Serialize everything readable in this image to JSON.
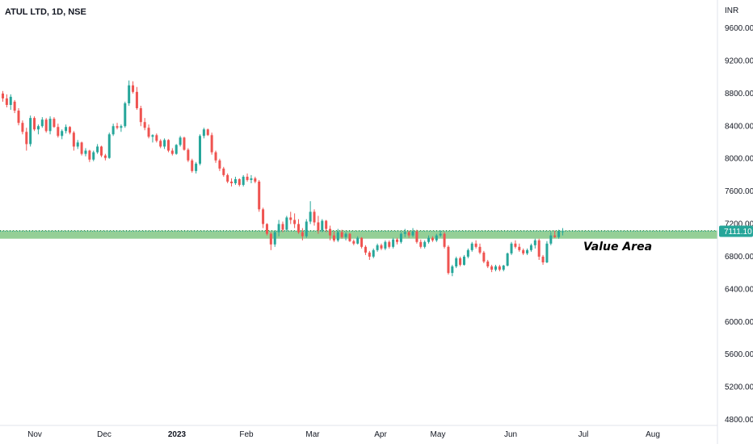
{
  "header": {
    "symbol_title": "ATUL LTD, 1D, NSE"
  },
  "chart_data": {
    "type": "candlestick",
    "title": "ATUL LTD, 1D, NSE",
    "currency_label": "INR",
    "y_ticks": [
      9600,
      9200,
      8800,
      8400,
      8000,
      7600,
      7200,
      6800,
      6400,
      6000,
      5600,
      5200,
      4800
    ],
    "y_tick_labels": [
      "9600.00",
      "9200.00",
      "8800.00",
      "8400.00",
      "8000.00",
      "7600.00",
      "7200.00",
      "6800.00",
      "6400.00",
      "6000.00",
      "5600.00",
      "5200.00",
      "4800.00"
    ],
    "x_tick_labels": [
      "Nov",
      "Dec",
      "2023",
      "Feb",
      "Mar",
      "Apr",
      "May",
      "Jun",
      "Jul",
      "Aug"
    ],
    "last_price_label": "7111.10",
    "last_price": 7111.1,
    "value_area": {
      "low": 7020,
      "high": 7120,
      "label": "Value Area"
    },
    "colors": {
      "up": "#26a69a",
      "down": "#ef5350",
      "zone": "#81c784",
      "price_tag": "#26a69a"
    },
    "candles": [
      [
        8800,
        8830,
        8700,
        8740
      ],
      [
        8740,
        8790,
        8630,
        8660
      ],
      [
        8660,
        8790,
        8600,
        8760
      ],
      [
        8700,
        8720,
        8560,
        8590
      ],
      [
        8590,
        8620,
        8410,
        8440
      ],
      [
        8440,
        8470,
        8300,
        8330
      ],
      [
        8330,
        8380,
        8100,
        8180
      ],
      [
        8180,
        8530,
        8150,
        8500
      ],
      [
        8500,
        8520,
        8340,
        8360
      ],
      [
        8360,
        8420,
        8300,
        8400
      ],
      [
        8400,
        8510,
        8380,
        8480
      ],
      [
        8480,
        8500,
        8320,
        8340
      ],
      [
        8340,
        8520,
        8300,
        8490
      ],
      [
        8490,
        8510,
        8380,
        8390
      ],
      [
        8390,
        8430,
        8260,
        8280
      ],
      [
        8280,
        8360,
        8240,
        8340
      ],
      [
        8340,
        8420,
        8310,
        8390
      ],
      [
        8390,
        8400,
        8300,
        8320
      ],
      [
        8320,
        8340,
        8100,
        8150
      ],
      [
        8150,
        8230,
        8120,
        8200
      ],
      [
        8200,
        8210,
        8040,
        8060
      ],
      [
        8060,
        8130,
        8030,
        8100
      ],
      [
        8100,
        8110,
        7960,
        7990
      ],
      [
        7990,
        8100,
        7970,
        8080
      ],
      [
        8080,
        8180,
        8060,
        8150
      ],
      [
        8150,
        8160,
        8020,
        8040
      ],
      [
        8040,
        8060,
        7980,
        8010
      ],
      [
        8010,
        8320,
        8000,
        8300
      ],
      [
        8300,
        8430,
        8280,
        8400
      ],
      [
        8400,
        8440,
        8360,
        8380
      ],
      [
        8380,
        8420,
        8330,
        8400
      ],
      [
        8400,
        8700,
        8380,
        8680
      ],
      [
        8680,
        8960,
        8650,
        8900
      ],
      [
        8900,
        8950,
        8800,
        8820
      ],
      [
        8820,
        8880,
        8600,
        8620
      ],
      [
        8620,
        8650,
        8400,
        8450
      ],
      [
        8450,
        8500,
        8350,
        8380
      ],
      [
        8380,
        8420,
        8250,
        8270
      ],
      [
        8270,
        8300,
        8200,
        8290
      ],
      [
        8290,
        8310,
        8200,
        8220
      ],
      [
        8220,
        8240,
        8130,
        8150
      ],
      [
        8150,
        8250,
        8120,
        8230
      ],
      [
        8230,
        8240,
        8080,
        8100
      ],
      [
        8100,
        8130,
        8040,
        8060
      ],
      [
        8060,
        8180,
        8050,
        8170
      ],
      [
        8170,
        8280,
        8150,
        8260
      ],
      [
        8260,
        8270,
        8100,
        8110
      ],
      [
        8110,
        8130,
        7960,
        7980
      ],
      [
        7980,
        8000,
        7830,
        7850
      ],
      [
        7850,
        7960,
        7820,
        7940
      ],
      [
        7940,
        8300,
        7920,
        8280
      ],
      [
        8280,
        8380,
        8250,
        8360
      ],
      [
        8360,
        8370,
        8280,
        8290
      ],
      [
        8290,
        8320,
        8050,
        8080
      ],
      [
        8080,
        8100,
        7950,
        7980
      ],
      [
        7980,
        8000,
        7850,
        7880
      ],
      [
        7880,
        7900,
        7780,
        7800
      ],
      [
        7800,
        7820,
        7700,
        7720
      ],
      [
        7720,
        7760,
        7660,
        7700
      ],
      [
        7700,
        7780,
        7680,
        7750
      ],
      [
        7750,
        7760,
        7660,
        7680
      ],
      [
        7680,
        7800,
        7660,
        7780
      ],
      [
        7780,
        7820,
        7720,
        7740
      ],
      [
        7740,
        7800,
        7700,
        7760
      ],
      [
        7760,
        7780,
        7700,
        7720
      ],
      [
        7720,
        7740,
        7350,
        7380
      ],
      [
        7380,
        7400,
        7150,
        7200
      ],
      [
        7200,
        7210,
        7060,
        7080
      ],
      [
        7080,
        7100,
        6880,
        6950
      ],
      [
        6950,
        7120,
        6920,
        7100
      ],
      [
        7100,
        7250,
        7050,
        7200
      ],
      [
        7200,
        7230,
        7100,
        7130
      ],
      [
        7130,
        7300,
        7110,
        7280
      ],
      [
        7280,
        7350,
        7200,
        7250
      ],
      [
        7250,
        7330,
        7150,
        7200
      ],
      [
        7200,
        7260,
        7080,
        7100
      ],
      [
        7100,
        7150,
        7000,
        7050
      ],
      [
        7050,
        7260,
        7030,
        7230
      ],
      [
        7230,
        7480,
        7200,
        7350
      ],
      [
        7350,
        7380,
        7180,
        7220
      ],
      [
        7220,
        7300,
        7080,
        7120
      ],
      [
        7120,
        7260,
        7100,
        7240
      ],
      [
        7240,
        7250,
        7100,
        7140
      ],
      [
        7140,
        7180,
        7000,
        7060
      ],
      [
        7060,
        7110,
        6980,
        7000
      ],
      [
        7000,
        7140,
        6980,
        7100
      ],
      [
        7100,
        7130,
        7020,
        7040
      ],
      [
        7040,
        7100,
        7000,
        7080
      ],
      [
        7080,
        7090,
        6980,
        6990
      ],
      [
        6990,
        7010,
        6940,
        6960
      ],
      [
        6960,
        7050,
        6950,
        7030
      ],
      [
        7030,
        7040,
        6900,
        6920
      ],
      [
        6920,
        6940,
        6820,
        6850
      ],
      [
        6850,
        6870,
        6760,
        6800
      ],
      [
        6800,
        6900,
        6780,
        6880
      ],
      [
        6880,
        6960,
        6860,
        6940
      ],
      [
        6940,
        6960,
        6880,
        6900
      ],
      [
        6900,
        7000,
        6880,
        6980
      ],
      [
        6980,
        7000,
        6900,
        6920
      ],
      [
        6920,
        7030,
        6900,
        7010
      ],
      [
        7010,
        7030,
        6950,
        6980
      ],
      [
        6980,
        7100,
        6960,
        7080
      ],
      [
        7080,
        7140,
        7040,
        7100
      ],
      [
        7100,
        7120,
        7030,
        7060
      ],
      [
        7060,
        7150,
        7040,
        7110
      ],
      [
        7110,
        7130,
        6960,
        6980
      ],
      [
        6980,
        7010,
        6900,
        6920
      ],
      [
        6920,
        7000,
        6900,
        6980
      ],
      [
        6980,
        7060,
        6960,
        7030
      ],
      [
        7030,
        7050,
        6980,
        7000
      ],
      [
        7000,
        7080,
        6980,
        7060
      ],
      [
        7060,
        7120,
        7040,
        7080
      ],
      [
        7080,
        7100,
        6900,
        6920
      ],
      [
        6920,
        6940,
        6580,
        6600
      ],
      [
        6600,
        6700,
        6560,
        6680
      ],
      [
        6680,
        6800,
        6660,
        6780
      ],
      [
        6780,
        6800,
        6680,
        6700
      ],
      [
        6700,
        6820,
        6690,
        6800
      ],
      [
        6800,
        6900,
        6780,
        6880
      ],
      [
        6880,
        6980,
        6860,
        6960
      ],
      [
        6960,
        7000,
        6900,
        6920
      ],
      [
        6920,
        6960,
        6830,
        6850
      ],
      [
        6850,
        6870,
        6720,
        6740
      ],
      [
        6740,
        6760,
        6660,
        6680
      ],
      [
        6680,
        6700,
        6610,
        6640
      ],
      [
        6640,
        6700,
        6620,
        6680
      ],
      [
        6680,
        6700,
        6620,
        6640
      ],
      [
        6640,
        6700,
        6620,
        6690
      ],
      [
        6690,
        6850,
        6680,
        6840
      ],
      [
        6840,
        6980,
        6820,
        6960
      ],
      [
        6960,
        7000,
        6900,
        6920
      ],
      [
        6920,
        6960,
        6860,
        6880
      ],
      [
        6880,
        6900,
        6820,
        6840
      ],
      [
        6840,
        6900,
        6820,
        6880
      ],
      [
        6880,
        6960,
        6860,
        6940
      ],
      [
        6940,
        7020,
        6900,
        7000
      ],
      [
        7000,
        7020,
        6760,
        6800
      ],
      [
        6800,
        6820,
        6700,
        6730
      ],
      [
        6730,
        6990,
        6720,
        6960
      ],
      [
        6960,
        7100,
        6940,
        7060
      ],
      [
        7060,
        7120,
        7030,
        7040
      ],
      [
        7040,
        7130,
        7020,
        7110
      ],
      [
        7110,
        7150,
        7060,
        7111.1
      ]
    ]
  }
}
